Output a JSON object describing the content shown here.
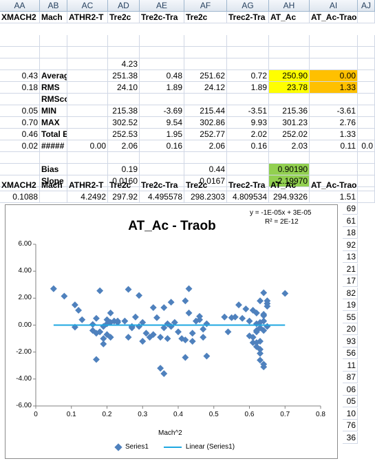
{
  "columns": [
    "AA",
    "AB",
    "AC",
    "AD",
    "AE",
    "AF",
    "AG",
    "AH",
    "AI",
    "AJ"
  ],
  "header_row": [
    "XMACH2",
    "Mach",
    "ATHR2-T",
    "Tre2c",
    "Tre2c-Tra",
    "Tre2c",
    "Trec2-Tra",
    "AT_Ac",
    "AT_Ac-Traob",
    ""
  ],
  "rows": [
    [
      "",
      "",
      "",
      "",
      "",
      "",
      "",
      "",
      "",
      ""
    ],
    [
      "",
      "",
      "",
      "",
      "",
      "",
      "",
      "",
      "",
      ""
    ],
    [
      "",
      "",
      "",
      "4.23",
      "",
      "",
      "",
      "",
      "",
      ""
    ],
    [
      "0.43",
      "Average",
      "",
      "251.38",
      "0.48",
      "251.62",
      "0.72",
      "250.90",
      "0.00",
      ""
    ],
    [
      "0.18",
      "RMS",
      "",
      "24.10",
      "1.89",
      "24.12",
      "1.89",
      "23.78",
      "1.33",
      ""
    ],
    [
      "",
      "RMScorr",
      "",
      "",
      "",
      "",
      "",
      "",
      "",
      ""
    ],
    [
      "0.05",
      "MIN",
      "",
      "215.38",
      "-3.69",
      "215.44",
      "-3.51",
      "215.36",
      "-3.61",
      ""
    ],
    [
      "0.70",
      "MAX",
      "",
      "302.52",
      "9.54",
      "302.86",
      "9.93",
      "301.23",
      "2.76",
      ""
    ],
    [
      "0.46",
      "Total Err",
      "",
      "252.53",
      "1.95",
      "252.77",
      "2.02",
      "252.02",
      "1.33",
      ""
    ],
    [
      "0.02",
      "#####",
      "0.00",
      "2.06",
      "0.16",
      "2.06",
      "0.16",
      "2.03",
      "0.11",
      "0.0"
    ],
    [
      "",
      "",
      "",
      "",
      "",
      "",
      "",
      "",
      "",
      ""
    ],
    [
      "",
      "Bias",
      "",
      "0.19",
      "",
      "0.44",
      "",
      "0.90190",
      "",
      ""
    ],
    [
      "",
      "Slope",
      "",
      "0.0160",
      "",
      "0.0167",
      "",
      "-2.19970",
      "",
      ""
    ]
  ],
  "header_row2": [
    "XMACH2",
    "Mach",
    "ATHR2-T",
    "Tre2c",
    "Tre2c-Tra",
    "Tre2c",
    "Trec2-Tra",
    "AT_Ac",
    "AT_Ac-Traob",
    ""
  ],
  "data_row": [
    "0.1088",
    "",
    "4.2492",
    "297.92",
    "4.495578",
    "298.2303",
    "4.809534",
    "294.9326",
    "1.51",
    ""
  ],
  "right_col": [
    "69",
    "61",
    "18",
    "92",
    "13",
    "21",
    "17",
    "82",
    "19",
    "55",
    "20",
    "93",
    "56",
    "11",
    "87",
    "06",
    "05",
    "10",
    "76",
    "36"
  ],
  "chart_data": {
    "type": "scatter",
    "title": "AT_Ac - Traob",
    "xlabel": "Mach^2",
    "ylabel": "",
    "xlim": [
      0,
      0.8
    ],
    "ylim": [
      -6,
      6
    ],
    "xticks": [
      "0",
      "0.1",
      "0.2",
      "0.3",
      "0.4",
      "0.5",
      "0.6",
      "0.7",
      "0.8"
    ],
    "yticks": [
      "6.00",
      "4.00",
      "2.00",
      "0.00",
      "-2.00",
      "-4.00",
      "-6.00"
    ],
    "trendline_equation": "y = -1E-05x + 3E-05",
    "r_squared": "R² = 2E-12",
    "legend": [
      "Series1",
      "Linear (Series1)"
    ],
    "colors": {
      "points": "#4f81bd",
      "trend": "#1ea7e1"
    },
    "series": [
      {
        "name": "Series1",
        "x": [
          0.05,
          0.08,
          0.11,
          0.12,
          0.13,
          0.11,
          0.16,
          0.17,
          0.18,
          0.19,
          0.2,
          0.21,
          0.22,
          0.23,
          0.17,
          0.18,
          0.19,
          0.2,
          0.17,
          0.19,
          0.2,
          0.16,
          0.18,
          0.21,
          0.25,
          0.26,
          0.27,
          0.28,
          0.29,
          0.3,
          0.31,
          0.32,
          0.33,
          0.34,
          0.35,
          0.36,
          0.36,
          0.37,
          0.38,
          0.39,
          0.4,
          0.41,
          0.42,
          0.43,
          0.44,
          0.45,
          0.46,
          0.47,
          0.48,
          0.33,
          0.35,
          0.37,
          0.38,
          0.42,
          0.43,
          0.44,
          0.46,
          0.47,
          0.48,
          0.53,
          0.54,
          0.55,
          0.56,
          0.57,
          0.58,
          0.59,
          0.6,
          0.61,
          0.62,
          0.63,
          0.64,
          0.65,
          0.6,
          0.61,
          0.62,
          0.63,
          0.64,
          0.62,
          0.63,
          0.64,
          0.65,
          0.62,
          0.63,
          0.64,
          0.61,
          0.62,
          0.63,
          0.64,
          0.65,
          0.7,
          0.62,
          0.63,
          0.64,
          0.63,
          0.64,
          0.65,
          0.3,
          0.29,
          0.27,
          0.36,
          0.42,
          0.26,
          0.23,
          0.21
        ],
        "y": [
          2.7,
          2.15,
          1.5,
          1.1,
          0.4,
          -0.15,
          -0.4,
          -0.6,
          -0.5,
          -1.0,
          0.4,
          -0.9,
          0.3,
          0.2,
          -2.55,
          2.55,
          -1.4,
          0.1,
          0.5,
          -0.1,
          -0.7,
          0.05,
          -0.5,
          0.9,
          0.3,
          -0.9,
          -0.2,
          0.6,
          -0.1,
          0.2,
          -0.6,
          -0.9,
          -0.7,
          0.55,
          -0.9,
          -0.2,
          1.3,
          -1.0,
          1.7,
          0.2,
          -0.5,
          -1.0,
          1.8,
          0.9,
          -1.2,
          0.3,
          0.65,
          -0.3,
          -2.3,
          1.3,
          -3.2,
          0.1,
          -0.1,
          -1.1,
          2.7,
          -0.6,
          0.4,
          -0.9,
          0.1,
          0.6,
          -0.5,
          0.55,
          0.6,
          1.5,
          0.5,
          1.2,
          0.3,
          1.1,
          -0.4,
          -1.2,
          0.7,
          -0.1,
          -0.8,
          -1.3,
          -1.6,
          1.8,
          0.3,
          -0.5,
          -1.8,
          2.4,
          1.4,
          0.1,
          -2.6,
          -3.1,
          -0.9,
          -1.3,
          -0.2,
          0.8,
          1.8,
          2.35,
          0.9,
          -2.1,
          -2.9,
          0.2,
          -0.4,
          1.6,
          -1.2,
          2.2,
          -0.1,
          -3.6,
          -2.4,
          2.65,
          0.3,
          0.2
        ]
      }
    ]
  }
}
